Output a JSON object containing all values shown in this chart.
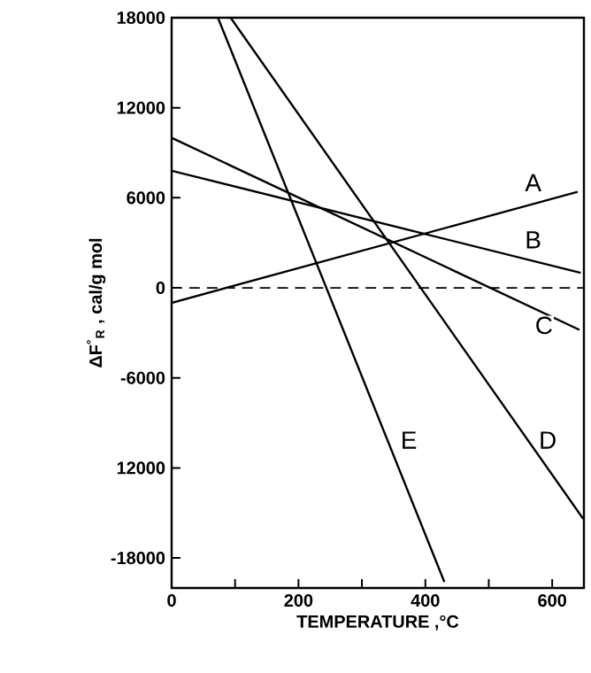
{
  "chart_data": {
    "type": "line",
    "xlabel": "TEMPERATURE ,°C",
    "ylabel": "ΔF$^{°}$$_{R}$ , cal/g mol",
    "xlim": [
      0,
      650
    ],
    "ylim": [
      -20000,
      18000
    ],
    "xticks": [
      0,
      {
        "value": 100,
        "label": null
      },
      200,
      {
        "value": 300,
        "label": null
      },
      400,
      {
        "value": 500,
        "label": null
      },
      600
    ],
    "yticks": [
      {
        "value": -18000,
        "label": "-18000"
      },
      {
        "value": -12000,
        "label": "12000"
      },
      {
        "value": -6000,
        "label": "-6000"
      },
      0,
      6000,
      12000,
      18000
    ],
    "grid": false,
    "marker": "none",
    "line_style": "solid",
    "series": [
      {
        "color": "#000000",
        "x": [
          0,
          640
        ],
        "values": [
          -1000,
          6400
        ]
      },
      {
        "color": "#000000",
        "x": [
          0,
          645
        ],
        "values": [
          7800,
          1000
        ]
      },
      {
        "color": "#000000",
        "x": [
          0,
          643
        ],
        "values": [
          10000,
          -2800
        ]
      },
      {
        "color": "#000000",
        "x": [
          93,
          649
        ],
        "values": [
          18000,
          -15400
        ]
      },
      {
        "color": "#000000",
        "x": [
          73,
          430
        ],
        "values": [
          18000,
          -19600
        ]
      }
    ],
    "ref_lines": [
      {
        "axis": "y",
        "value": 0,
        "color": "#000000",
        "line_style": "dashed"
      }
    ],
    "annotations": [
      {
        "text": "A",
        "x": 570,
        "y": 7000
      },
      {
        "text": "B",
        "x": 570,
        "y": 3200
      },
      {
        "text": "C",
        "x": 587,
        "y": -2500
      },
      {
        "text": "D",
        "x": 593,
        "y": -10150
      },
      {
        "text": "E",
        "x": 374,
        "y": -10150
      }
    ]
  }
}
